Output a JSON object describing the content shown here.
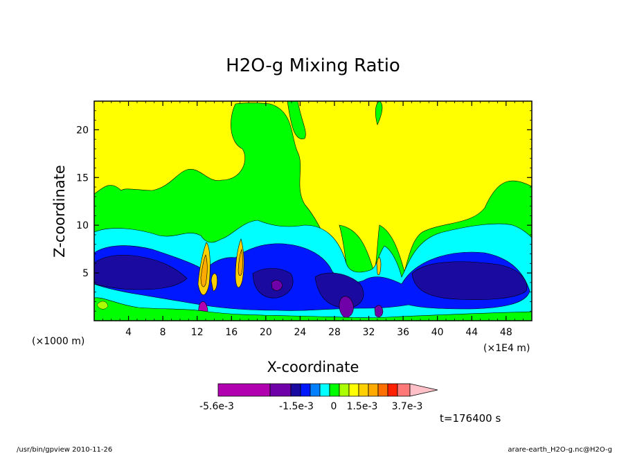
{
  "chart_data": {
    "type": "heatmap",
    "title": "H2O-g Mixing Ratio",
    "xlabel": "X-coordinate",
    "ylabel": "Z-coordinate",
    "xlim": [
      0,
      51
    ],
    "ylim": [
      0,
      23
    ],
    "x_ticks": [
      "4",
      "8",
      "12",
      "16",
      "20",
      "24",
      "28",
      "32",
      "36",
      "40",
      "44",
      "48"
    ],
    "x_tick_values": [
      4,
      8,
      12,
      16,
      20,
      24,
      28,
      32,
      36,
      40,
      44,
      48
    ],
    "y_ticks": [
      "5",
      "10",
      "15",
      "20"
    ],
    "y_tick_values": [
      5,
      10,
      15,
      20
    ],
    "y_unit": "(×1000 m)",
    "x_unit": "(×1E4 m)",
    "colorbar": {
      "colors": [
        "#b000b0",
        "#7000a8",
        "#1a0aa0",
        "#0018ff",
        "#0080ff",
        "#00ffff",
        "#00ff00",
        "#aaff00",
        "#ffff00",
        "#ffd000",
        "#ffaa00",
        "#ff7000",
        "#ff2000",
        "#ff7878",
        "#ffc0c8"
      ],
      "labels": [
        "-5.6e-3",
        "-1.5e-3",
        "0",
        "1.5e-3",
        "3.7e-3"
      ]
    },
    "time_label": "t=176400 s"
  },
  "footer": {
    "left": "/usr/bin/gpview  2010-11-26",
    "right": "arare-earth_H2O-g.nc@H2O-g"
  }
}
